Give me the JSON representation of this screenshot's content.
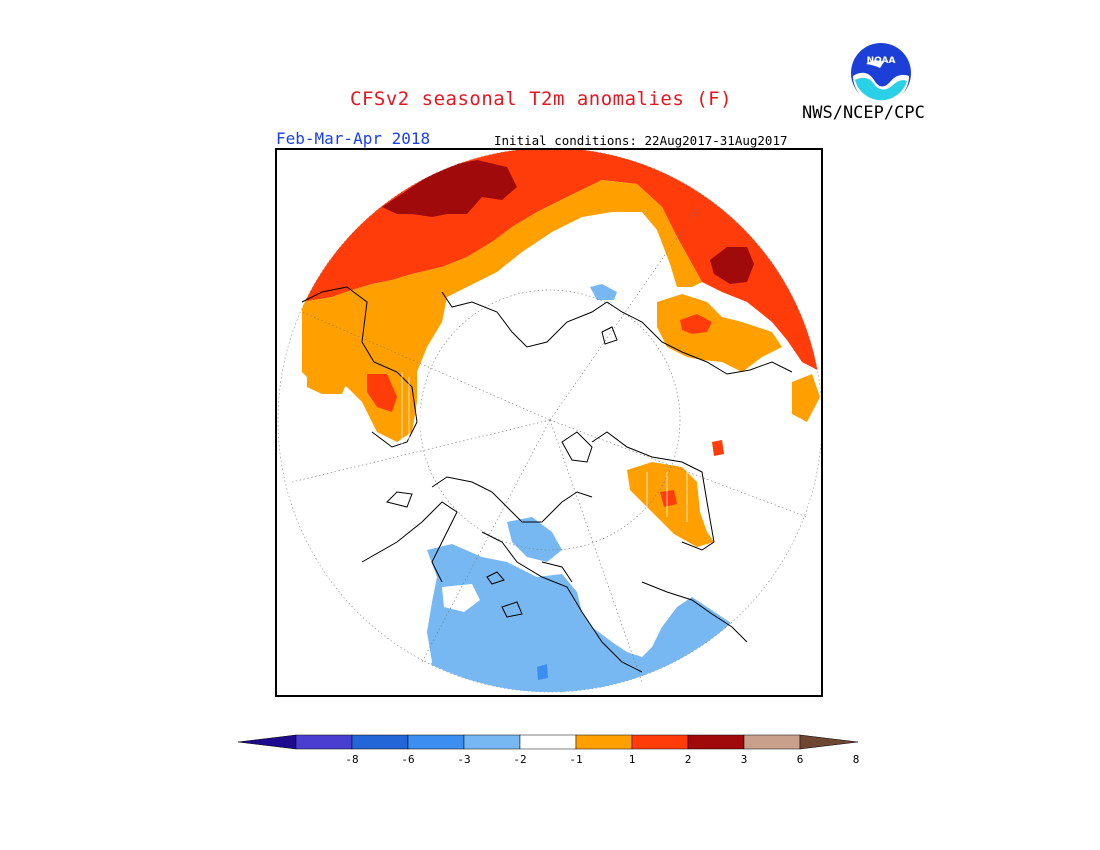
{
  "header": {
    "title": "CFSv2 seasonal T2m anomalies (F)",
    "agency": "NWS/NCEP/CPC",
    "period": "Feb-Mar-Apr 2018",
    "initial_conditions": "Initial conditions: 22Aug2017-31Aug2017",
    "logo_text": "NOAA"
  },
  "legend": {
    "labels": [
      "-8",
      "-6",
      "-3",
      "-2",
      "-1",
      "1",
      "2",
      "3",
      "6",
      "8"
    ],
    "colors": [
      "#1e0a8c",
      "#4a3ed0",
      "#2266d8",
      "#3c8ef0",
      "#78b8f2",
      "#ffffff",
      "#ffa000",
      "#ff3c0a",
      "#a00a0a",
      "#c8a08c",
      "#6e4632"
    ]
  }
}
